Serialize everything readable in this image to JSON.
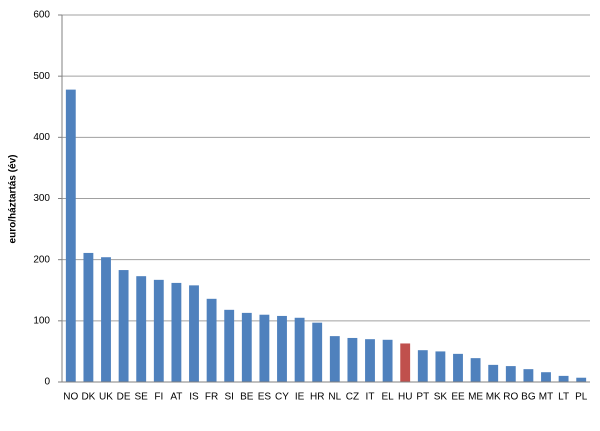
{
  "chart_data": {
    "type": "bar",
    "y_label": "euro/háztartás (év)",
    "categories": [
      "NO",
      "DK",
      "UK",
      "DE",
      "SE",
      "FI",
      "AT",
      "IS",
      "FR",
      "SI",
      "BE",
      "ES",
      "CY",
      "IE",
      "HR",
      "NL",
      "CZ",
      "IT",
      "EL",
      "HU",
      "PT",
      "SK",
      "EE",
      "ME",
      "MK",
      "RO",
      "BG",
      "MT",
      "LT",
      "PL"
    ],
    "values": [
      478,
      211,
      204,
      183,
      173,
      167,
      162,
      158,
      136,
      118,
      113,
      110,
      108,
      105,
      97,
      75,
      72,
      70,
      69,
      63,
      52,
      50,
      46,
      39,
      28,
      26,
      21,
      16,
      10,
      7
    ],
    "colors": [
      "#4f81bd",
      "#4f81bd",
      "#4f81bd",
      "#4f81bd",
      "#4f81bd",
      "#4f81bd",
      "#4f81bd",
      "#4f81bd",
      "#4f81bd",
      "#4f81bd",
      "#4f81bd",
      "#4f81bd",
      "#4f81bd",
      "#4f81bd",
      "#4f81bd",
      "#4f81bd",
      "#4f81bd",
      "#4f81bd",
      "#4f81bd",
      "#c0504d",
      "#4f81bd",
      "#4f81bd",
      "#4f81bd",
      "#4f81bd",
      "#4f81bd",
      "#4f81bd",
      "#4f81bd",
      "#4f81bd",
      "#4f81bd",
      "#4f81bd"
    ],
    "ylim": [
      0,
      600
    ],
    "yticks": [
      0,
      100,
      200,
      300,
      400,
      500,
      600
    ],
    "grid": true
  }
}
